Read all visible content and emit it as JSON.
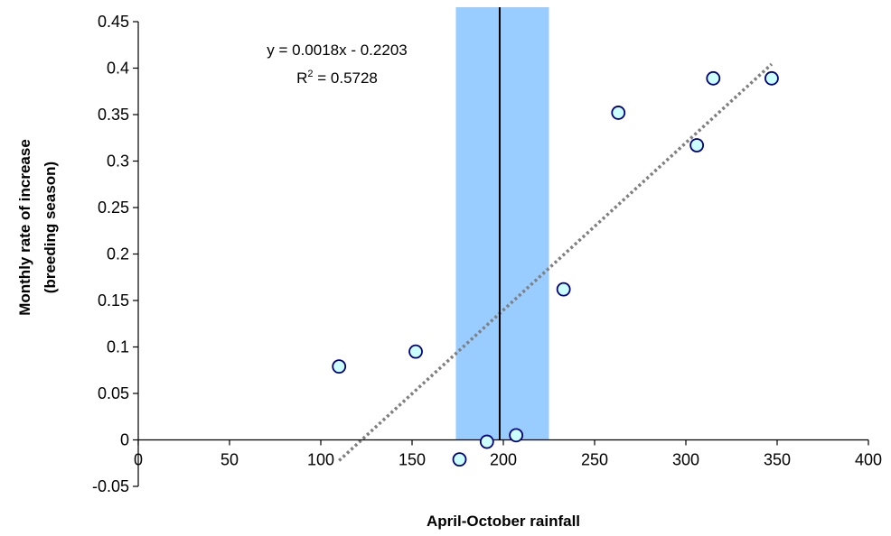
{
  "chart_data": {
    "type": "scatter",
    "xlabel": "April-October rainfall",
    "ylabel_lines": [
      "Monthly rate of increase",
      "(breeding season)"
    ],
    "xlim": [
      0,
      400
    ],
    "ylim": [
      -0.05,
      0.45
    ],
    "x_ticks": [
      0,
      50,
      100,
      150,
      200,
      250,
      300,
      350,
      400
    ],
    "y_ticks": [
      -0.05,
      0,
      0.05,
      0.1,
      0.15,
      0.2,
      0.25,
      0.3,
      0.35,
      0.4,
      0.45
    ],
    "y_tick_labels": [
      "-0.05",
      "0",
      "0.05",
      "0.1",
      "0.15",
      "0.2",
      "0.25",
      "0.3",
      "0.35",
      "0.4",
      "0.45"
    ],
    "grid": false,
    "series": [
      {
        "points": [
          {
            "x": 110,
            "y": 0.079
          },
          {
            "x": 152,
            "y": 0.095
          },
          {
            "x": 176,
            "y": -0.021
          },
          {
            "x": 191,
            "y": -0.002
          },
          {
            "x": 207,
            "y": 0.005
          },
          {
            "x": 233,
            "y": 0.162
          },
          {
            "x": 263,
            "y": 0.352
          },
          {
            "x": 306,
            "y": 0.317
          },
          {
            "x": 315,
            "y": 0.389
          },
          {
            "x": 347,
            "y": 0.389
          }
        ]
      }
    ],
    "trendline": {
      "slope": 0.0018,
      "intercept": -0.2203,
      "x_range": [
        110,
        347
      ],
      "equation_label": "y = 0.0018x - 0.2203",
      "r2_prefix": "R",
      "r2_sup": "2",
      "r2_value": " = 0.5728"
    },
    "shaded_band": {
      "x_from": 174,
      "x_to": 225,
      "color": "#99ccff"
    },
    "vertical_line": {
      "x": 198,
      "color": "#000000"
    },
    "colors": {
      "marker_fill": "#ccffff",
      "marker_stroke": "#000080",
      "trendline": "#808080",
      "axis": "#000000"
    }
  }
}
